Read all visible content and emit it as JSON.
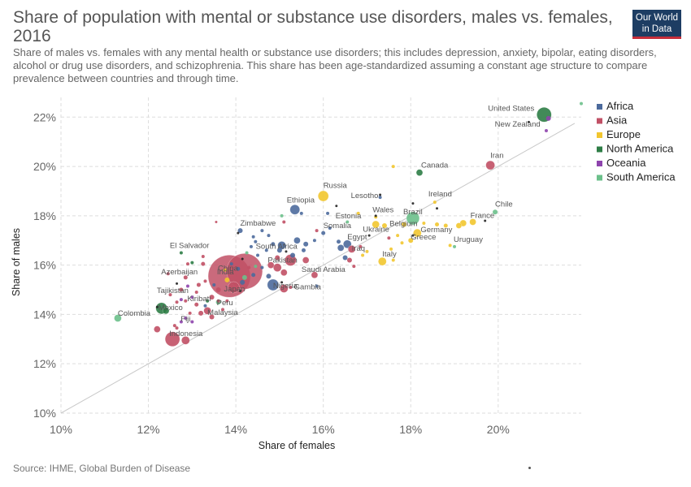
{
  "header": {
    "title": "Share of population with mental or substance use disorders, males vs. females, 2016",
    "subtitle": "Share of males vs. females with any mental health or substance use disorders; this includes depression, anxiety, bipolar, eating disorders, alcohol or drug use disorders, and schizophrenia. This share has been age-standardized assuming a constant age structure to compare prevalence between countries and through time.",
    "logo_line1": "Our World",
    "logo_line2": "in Data"
  },
  "footer": {
    "source": "Source: IHME, Global Burden of Disease"
  },
  "colors": {
    "Africa": "#4c6a9c",
    "Asia": "#c15065",
    "Europe": "#f2c62f",
    "North America": "#2e7d46",
    "Oceania": "#8e44ad",
    "South America": "#6cc08b",
    "no_region": "#222222",
    "reference_line": "#c8c8c8",
    "grid": "#dddddd"
  },
  "chart_data": {
    "type": "scatter",
    "xlabel": "Share of females",
    "ylabel": "Share of males",
    "xlim": [
      10,
      21.9
    ],
    "ylim": [
      9.9,
      22.8
    ],
    "x_ticks": [
      "10%",
      "12%",
      "14%",
      "16%",
      "18%",
      "20%"
    ],
    "x_tick_values": [
      10,
      12,
      14,
      16,
      18,
      20
    ],
    "y_ticks": [
      "10%",
      "12%",
      "14%",
      "16%",
      "18%",
      "20%",
      "22%"
    ],
    "y_tick_values": [
      10,
      12,
      14,
      16,
      18,
      20,
      22
    ],
    "grid": true,
    "reference_line": "x = y",
    "legend": {
      "position": "right",
      "entries": [
        "Africa",
        "Asia",
        "Europe",
        "North America",
        "Oceania",
        "South America"
      ]
    },
    "labeled_points": [
      {
        "name": "United States",
        "x": 21.05,
        "y": 22.1,
        "region": "North America",
        "size": 9
      },
      {
        "name": "New Zealand",
        "x": 21.15,
        "y": 21.95,
        "region": "Oceania",
        "size": 3
      },
      {
        "name": "Iran",
        "x": 19.82,
        "y": 20.05,
        "region": "Asia",
        "size": 5.5
      },
      {
        "name": "Canada",
        "x": 18.2,
        "y": 19.75,
        "region": "North America",
        "size": 4
      },
      {
        "name": "Chile",
        "x": 19.93,
        "y": 18.15,
        "region": "South America",
        "size": 3
      },
      {
        "name": "France",
        "x": 19.42,
        "y": 17.75,
        "region": "Europe",
        "size": 4
      },
      {
        "name": "Uruguay",
        "x": 19.0,
        "y": 16.75,
        "region": "South America",
        "size": 2
      },
      {
        "name": "Ireland",
        "x": 18.55,
        "y": 18.55,
        "region": "Europe",
        "size": 2
      },
      {
        "name": "Brazil",
        "x": 18.05,
        "y": 17.9,
        "region": "South America",
        "size": 8
      },
      {
        "name": "Belgium",
        "x": 17.85,
        "y": 17.65,
        "region": "Europe",
        "size": 3
      },
      {
        "name": "Germany",
        "x": 18.15,
        "y": 17.3,
        "region": "Europe",
        "size": 5
      },
      {
        "name": "Greece",
        "x": 18.0,
        "y": 17.0,
        "region": "Europe",
        "size": 3
      },
      {
        "name": "Wales",
        "x": 17.2,
        "y": 17.95,
        "region": "Europe",
        "size": 2
      },
      {
        "name": "Ukraine",
        "x": 17.2,
        "y": 17.65,
        "region": "Europe",
        "size": 4.5
      },
      {
        "name": "Lesotho",
        "x": 17.3,
        "y": 18.75,
        "region": "Africa",
        "size": 2
      },
      {
        "name": "Estonia",
        "x": 16.8,
        "y": 18.1,
        "region": "Europe",
        "size": 2
      },
      {
        "name": "Russia",
        "x": 16.0,
        "y": 18.8,
        "region": "Europe",
        "size": 6.5
      },
      {
        "name": "Ethiopia",
        "x": 15.35,
        "y": 18.25,
        "region": "Africa",
        "size": 6
      },
      {
        "name": "Somalia",
        "x": 16.0,
        "y": 17.3,
        "region": "Africa",
        "size": 2.5
      },
      {
        "name": "Egypt",
        "x": 16.55,
        "y": 16.85,
        "region": "Africa",
        "size": 5
      },
      {
        "name": "Iraq",
        "x": 16.65,
        "y": 16.65,
        "region": "Asia",
        "size": 4.5
      },
      {
        "name": "Italy",
        "x": 17.35,
        "y": 16.15,
        "region": "Europe",
        "size": 5
      },
      {
        "name": "Saudi Arabia",
        "x": 15.8,
        "y": 15.6,
        "region": "Asia",
        "size": 4
      },
      {
        "name": "Gambia",
        "x": 15.85,
        "y": 15.15,
        "region": "Africa",
        "size": 2
      },
      {
        "name": "South Africa",
        "x": 15.05,
        "y": 16.8,
        "region": "Africa",
        "size": 5
      },
      {
        "name": "Pakistan",
        "x": 15.25,
        "y": 16.2,
        "region": "Asia",
        "size": 7
      },
      {
        "name": "Nigeria",
        "x": 14.85,
        "y": 15.2,
        "region": "Africa",
        "size": 7
      },
      {
        "name": "Zimbabwe",
        "x": 14.1,
        "y": 17.4,
        "region": "Africa",
        "size": 3
      },
      {
        "name": "China",
        "x": 13.85,
        "y": 15.55,
        "region": "Asia",
        "size": 26
      },
      {
        "name": "India",
        "x": 14.2,
        "y": 15.75,
        "region": "Asia",
        "size": 22
      },
      {
        "name": "Japan",
        "x": 13.95,
        "y": 15.1,
        "region": "Asia",
        "size": 7
      },
      {
        "name": "Peru",
        "x": 13.6,
        "y": 14.5,
        "region": "South America",
        "size": 3
      },
      {
        "name": "El Salvador",
        "x": 12.75,
        "y": 16.5,
        "region": "North America",
        "size": 2
      },
      {
        "name": "Azerbaijan",
        "x": 12.85,
        "y": 15.5,
        "region": "Asia",
        "size": 2.5
      },
      {
        "name": "Tajikistan",
        "x": 12.75,
        "y": 15.0,
        "region": "Asia",
        "size": 2.5
      },
      {
        "name": "Kiribati",
        "x": 13.0,
        "y": 14.7,
        "region": "Oceania",
        "size": 2
      },
      {
        "name": "Malaysia",
        "x": 13.35,
        "y": 14.15,
        "region": "Asia",
        "size": 4.5
      },
      {
        "name": "Mexico",
        "x": 12.3,
        "y": 14.25,
        "region": "North America",
        "size": 7
      },
      {
        "name": "Fiji",
        "x": 12.85,
        "y": 13.85,
        "region": "Oceania",
        "size": 2
      },
      {
        "name": "Indonesia",
        "x": 12.55,
        "y": 13.0,
        "region": "Asia",
        "size": 9
      },
      {
        "name": "Colombia",
        "x": 11.3,
        "y": 13.85,
        "region": "South America",
        "size": 4.5
      }
    ],
    "other_points": [
      {
        "x": 21.9,
        "y": 22.55,
        "region": "South America",
        "size": 2
      },
      {
        "x": 21.1,
        "y": 21.45,
        "region": "Oceania",
        "size": 2
      },
      {
        "x": 20.7,
        "y": 21.8,
        "region": "no_region",
        "size": 1.5
      },
      {
        "x": 17.6,
        "y": 20.0,
        "region": "Europe",
        "size": 2
      },
      {
        "x": 17.3,
        "y": 18.85,
        "region": "no_region",
        "size": 1.5
      },
      {
        "x": 18.05,
        "y": 18.5,
        "region": "no_region",
        "size": 1.5
      },
      {
        "x": 18.6,
        "y": 18.3,
        "region": "no_region",
        "size": 1.5
      },
      {
        "x": 17.2,
        "y": 18.0,
        "region": "no_region",
        "size": 1.5
      },
      {
        "x": 18.3,
        "y": 17.7,
        "region": "Europe",
        "size": 2
      },
      {
        "x": 18.6,
        "y": 17.65,
        "region": "Europe",
        "size": 2.5
      },
      {
        "x": 18.8,
        "y": 17.6,
        "region": "Europe",
        "size": 2.5
      },
      {
        "x": 19.1,
        "y": 17.6,
        "region": "Europe",
        "size": 3.5
      },
      {
        "x": 19.2,
        "y": 17.7,
        "region": "Europe",
        "size": 4
      },
      {
        "x": 19.7,
        "y": 17.8,
        "region": "no_region",
        "size": 1.5
      },
      {
        "x": 18.9,
        "y": 16.8,
        "region": "Europe",
        "size": 2
      },
      {
        "x": 18.05,
        "y": 17.2,
        "region": "no_region",
        "size": 1.5
      },
      {
        "x": 17.7,
        "y": 17.2,
        "region": "Europe",
        "size": 2
      },
      {
        "x": 17.05,
        "y": 17.2,
        "region": "no_region",
        "size": 1.5
      },
      {
        "x": 17.4,
        "y": 17.6,
        "region": "Europe",
        "size": 3
      },
      {
        "x": 17.8,
        "y": 16.9,
        "region": "Europe",
        "size": 2
      },
      {
        "x": 17.55,
        "y": 16.65,
        "region": "Europe",
        "size": 2
      },
      {
        "x": 17.0,
        "y": 16.55,
        "region": "Europe",
        "size": 2
      },
      {
        "x": 17.5,
        "y": 17.1,
        "region": "Asia",
        "size": 2
      },
      {
        "x": 16.85,
        "y": 16.75,
        "region": "Asia",
        "size": 2
      },
      {
        "x": 17.6,
        "y": 16.2,
        "region": "Europe",
        "size": 2
      },
      {
        "x": 16.9,
        "y": 16.4,
        "region": "Europe",
        "size": 2
      },
      {
        "x": 16.5,
        "y": 16.3,
        "region": "Africa",
        "size": 3
      },
      {
        "x": 16.4,
        "y": 16.7,
        "region": "Africa",
        "size": 4
      },
      {
        "x": 16.6,
        "y": 16.2,
        "region": "Asia",
        "size": 3
      },
      {
        "x": 16.7,
        "y": 15.95,
        "region": "Asia",
        "size": 2
      },
      {
        "x": 16.35,
        "y": 16.95,
        "region": "Africa",
        "size": 2.5
      },
      {
        "x": 15.85,
        "y": 17.4,
        "region": "Asia",
        "size": 2
      },
      {
        "x": 16.55,
        "y": 17.75,
        "region": "South America",
        "size": 2
      },
      {
        "x": 16.15,
        "y": 17.5,
        "region": "Africa",
        "size": 2
      },
      {
        "x": 16.1,
        "y": 18.1,
        "region": "Africa",
        "size": 2
      },
      {
        "x": 16.3,
        "y": 18.4,
        "region": "no_region",
        "size": 1.5
      },
      {
        "x": 15.5,
        "y": 18.1,
        "region": "Africa",
        "size": 2
      },
      {
        "x": 15.1,
        "y": 17.75,
        "region": "Asia",
        "size": 2
      },
      {
        "x": 15.05,
        "y": 18.0,
        "region": "South America",
        "size": 2
      },
      {
        "x": 15.8,
        "y": 17.0,
        "region": "Africa",
        "size": 2
      },
      {
        "x": 15.55,
        "y": 16.6,
        "region": "Africa",
        "size": 2.5
      },
      {
        "x": 15.4,
        "y": 17.0,
        "region": "Africa",
        "size": 4
      },
      {
        "x": 15.6,
        "y": 16.85,
        "region": "Africa",
        "size": 3
      },
      {
        "x": 15.6,
        "y": 16.2,
        "region": "Asia",
        "size": 4
      },
      {
        "x": 15.3,
        "y": 16.4,
        "region": "Africa",
        "size": 3
      },
      {
        "x": 15.15,
        "y": 16.55,
        "region": "no_region",
        "size": 1.5
      },
      {
        "x": 15.0,
        "y": 16.6,
        "region": "Africa",
        "size": 3
      },
      {
        "x": 14.85,
        "y": 16.85,
        "region": "Africa",
        "size": 2.5
      },
      {
        "x": 14.7,
        "y": 16.6,
        "region": "Africa",
        "size": 2
      },
      {
        "x": 14.95,
        "y": 16.3,
        "region": "Asia",
        "size": 3
      },
      {
        "x": 14.8,
        "y": 16.0,
        "region": "Asia",
        "size": 4
      },
      {
        "x": 14.95,
        "y": 15.9,
        "region": "Asia",
        "size": 5
      },
      {
        "x": 15.1,
        "y": 15.7,
        "region": "Asia",
        "size": 4
      },
      {
        "x": 14.75,
        "y": 15.55,
        "region": "Africa",
        "size": 3
      },
      {
        "x": 15.05,
        "y": 15.3,
        "region": "no_region",
        "size": 1.5
      },
      {
        "x": 15.1,
        "y": 15.05,
        "region": "Asia",
        "size": 5
      },
      {
        "x": 15.25,
        "y": 15.1,
        "region": "Asia",
        "size": 2
      },
      {
        "x": 14.6,
        "y": 15.9,
        "region": "Africa",
        "size": 2
      },
      {
        "x": 14.5,
        "y": 16.4,
        "region": "Africa",
        "size": 2
      },
      {
        "x": 14.45,
        "y": 16.95,
        "region": "Africa",
        "size": 2
      },
      {
        "x": 14.75,
        "y": 17.2,
        "region": "Africa",
        "size": 2
      },
      {
        "x": 14.4,
        "y": 17.15,
        "region": "Africa",
        "size": 2
      },
      {
        "x": 14.05,
        "y": 17.3,
        "region": "no_region",
        "size": 1.5
      },
      {
        "x": 13.55,
        "y": 17.75,
        "region": "Asia",
        "size": 1.5
      },
      {
        "x": 14.6,
        "y": 17.4,
        "region": "Africa",
        "size": 2
      },
      {
        "x": 14.35,
        "y": 16.75,
        "region": "Africa",
        "size": 2
      },
      {
        "x": 14.25,
        "y": 16.5,
        "region": "South America",
        "size": 2
      },
      {
        "x": 14.15,
        "y": 16.25,
        "region": "no_region",
        "size": 1.5
      },
      {
        "x": 14.3,
        "y": 15.9,
        "region": "Asia",
        "size": 2
      },
      {
        "x": 14.45,
        "y": 15.95,
        "region": "South America",
        "size": 2
      },
      {
        "x": 14.4,
        "y": 15.6,
        "region": "Africa",
        "size": 2.5
      },
      {
        "x": 14.2,
        "y": 15.5,
        "region": "South America",
        "size": 3
      },
      {
        "x": 14.05,
        "y": 15.85,
        "region": "Africa",
        "size": 2.5
      },
      {
        "x": 13.9,
        "y": 16.05,
        "region": "Africa",
        "size": 2
      },
      {
        "x": 14.15,
        "y": 15.3,
        "region": "Africa",
        "size": 3
      },
      {
        "x": 13.8,
        "y": 15.4,
        "region": "Europe",
        "size": 3
      },
      {
        "x": 13.75,
        "y": 15.8,
        "region": "Europe",
        "size": 2
      },
      {
        "x": 14.1,
        "y": 14.95,
        "region": "no_region",
        "size": 1.5
      },
      {
        "x": 13.6,
        "y": 15.0,
        "region": "Asia",
        "size": 3
      },
      {
        "x": 13.45,
        "y": 14.7,
        "region": "Asia",
        "size": 3
      },
      {
        "x": 13.5,
        "y": 15.2,
        "region": "Africa",
        "size": 2
      },
      {
        "x": 13.3,
        "y": 15.35,
        "region": "Asia",
        "size": 2
      },
      {
        "x": 13.15,
        "y": 15.2,
        "region": "Asia",
        "size": 2.5
      },
      {
        "x": 13.1,
        "y": 14.4,
        "region": "Asia",
        "size": 2.5
      },
      {
        "x": 13.3,
        "y": 14.35,
        "region": "Africa",
        "size": 2
      },
      {
        "x": 13.2,
        "y": 14.05,
        "region": "Asia",
        "size": 3
      },
      {
        "x": 13.45,
        "y": 13.9,
        "region": "Asia",
        "size": 3
      },
      {
        "x": 12.95,
        "y": 14.05,
        "region": "Asia",
        "size": 2
      },
      {
        "x": 13.1,
        "y": 14.9,
        "region": "Asia",
        "size": 2
      },
      {
        "x": 12.9,
        "y": 15.15,
        "region": "Oceania",
        "size": 2
      },
      {
        "x": 12.75,
        "y": 14.6,
        "region": "Oceania",
        "size": 2
      },
      {
        "x": 12.65,
        "y": 14.5,
        "region": "Asia",
        "size": 2
      },
      {
        "x": 12.5,
        "y": 14.8,
        "region": "Asia",
        "size": 2
      },
      {
        "x": 12.45,
        "y": 15.65,
        "region": "Asia",
        "size": 2
      },
      {
        "x": 12.65,
        "y": 15.25,
        "region": "no_region",
        "size": 1.5
      },
      {
        "x": 13.25,
        "y": 16.05,
        "region": "Asia",
        "size": 2.5
      },
      {
        "x": 13.25,
        "y": 16.35,
        "region": "Asia",
        "size": 2
      },
      {
        "x": 13.0,
        "y": 16.1,
        "region": "North America",
        "size": 2
      },
      {
        "x": 12.9,
        "y": 16.05,
        "region": "Asia",
        "size": 2
      },
      {
        "x": 12.85,
        "y": 14.55,
        "region": "Asia",
        "size": 2
      },
      {
        "x": 13.0,
        "y": 13.7,
        "region": "Oceania",
        "size": 2
      },
      {
        "x": 12.75,
        "y": 13.7,
        "region": "Oceania",
        "size": 2
      },
      {
        "x": 12.6,
        "y": 13.55,
        "region": "Asia",
        "size": 2
      },
      {
        "x": 12.4,
        "y": 14.15,
        "region": "North America",
        "size": 4
      },
      {
        "x": 12.2,
        "y": 14.3,
        "region": "no_region",
        "size": 1.5
      },
      {
        "x": 12.2,
        "y": 13.4,
        "region": "Asia",
        "size": 4
      },
      {
        "x": 12.65,
        "y": 13.45,
        "region": "Asia",
        "size": 2
      },
      {
        "x": 12.85,
        "y": 12.95,
        "region": "Asia",
        "size": 5
      },
      {
        "x": 13.6,
        "y": 14.55,
        "region": "Asia",
        "size": 2
      },
      {
        "x": 13.7,
        "y": 14.2,
        "region": "Asia",
        "size": 2
      },
      {
        "x": 13.35,
        "y": 14.55,
        "region": "North America",
        "size": 2
      },
      {
        "x": 13.8,
        "y": 14.55,
        "region": "Asia",
        "size": 2
      }
    ]
  }
}
